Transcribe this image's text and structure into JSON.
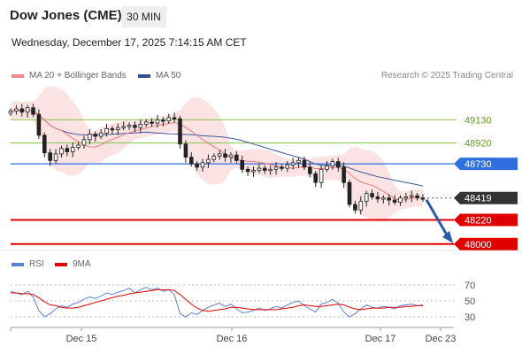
{
  "header": {
    "title": "Dow Jones (CME)",
    "interval": "30 MIN",
    "datetime": "Wednesday, December 17, 2025 7:14:15 AM CET"
  },
  "legend": {
    "ma20_label": "MA 20 + Bollinger Bands",
    "ma50_label": "MA 50",
    "copyright": "Research © 2025 Trading Central"
  },
  "rsi_legend": {
    "rsi_label": "RSI",
    "ma9_label": "9MA"
  },
  "colors": {
    "bollinger_fill": "#fbdada",
    "ma20": "#f07a7a",
    "ma50": "#3a5a9a",
    "resistance_green": "#8bc34a",
    "pivot_blue": "#2f6fe0",
    "support_red": "#e00000",
    "candle_up": "#ffffff",
    "candle_down": "#222222",
    "current_tag": "#333333",
    "arrow": "#2b5aa8",
    "rsi_line": "#5a7fd6",
    "rsi_ma": "#e00000"
  },
  "chart_data": {
    "type": "candlestick",
    "instrument": "Dow Jones (CME)",
    "x_ticks": [
      "Dec 15",
      "Dec 16",
      "Dec 17",
      "Dec 23"
    ],
    "ylim": [
      47950,
      49270
    ],
    "levels": [
      {
        "value": 49130,
        "label": "49130",
        "kind": "resistance",
        "tag": false
      },
      {
        "value": 48920,
        "label": "48920",
        "kind": "resistance",
        "tag": false
      },
      {
        "value": 48730,
        "label": "48730",
        "kind": "pivot",
        "tag": true
      },
      {
        "value": 48220,
        "label": "48220",
        "kind": "support",
        "tag": true
      },
      {
        "value": 48000,
        "label": "48000",
        "kind": "support",
        "tag": true
      }
    ],
    "current_price": {
      "value": 48419,
      "label": "48419"
    },
    "close_series": [
      49210,
      49230,
      49200,
      49240,
      49180,
      48990,
      48830,
      48760,
      48820,
      48870,
      48840,
      48880,
      48900,
      48950,
      49000,
      48980,
      49010,
      49050,
      49040,
      49060,
      49070,
      49080,
      49060,
      49090,
      49110,
      49100,
      49130,
      49120,
      49150,
      49140,
      48910,
      48790,
      48730,
      48700,
      48740,
      48770,
      48800,
      48820,
      48790,
      48810,
      48760,
      48680,
      48660,
      48670,
      48690,
      48670,
      48680,
      48700,
      48690,
      48720,
      48740,
      48760,
      48700,
      48640,
      48560,
      48680,
      48710,
      48750,
      48700,
      48560,
      48360,
      48310,
      48390,
      48460,
      48430,
      48410,
      48420,
      48400,
      48380,
      48420,
      48430,
      48440,
      48420,
      48419
    ],
    "rsi": {
      "levels": [
        70,
        50,
        30
      ],
      "ylim": [
        20,
        80
      ],
      "values": [
        62,
        60,
        58,
        62,
        55,
        38,
        30,
        34,
        40,
        44,
        42,
        46,
        48,
        52,
        55,
        53,
        56,
        60,
        58,
        61,
        63,
        66,
        60,
        64,
        67,
        64,
        66,
        62,
        64,
        58,
        34,
        30,
        35,
        33,
        38,
        42,
        45,
        47,
        43,
        46,
        40,
        35,
        36,
        38,
        41,
        38,
        40,
        43,
        41,
        45,
        48,
        50,
        44,
        40,
        36,
        46,
        48,
        52,
        47,
        36,
        30,
        34,
        40,
        45,
        42,
        41,
        43,
        42,
        40,
        44,
        45,
        46,
        44,
        45
      ],
      "ma9": [
        60,
        60,
        59,
        59,
        58,
        54,
        49,
        45,
        44,
        42,
        41,
        41,
        42,
        44,
        46,
        48,
        50,
        52,
        54,
        56,
        57,
        59,
        60,
        61,
        62,
        63,
        64,
        64,
        64,
        63,
        58,
        52,
        46,
        41,
        38,
        37,
        38,
        39,
        40,
        42,
        42,
        41,
        40,
        39,
        39,
        39,
        39,
        39,
        40,
        41,
        42,
        44,
        45,
        44,
        43,
        43,
        44,
        45,
        46,
        45,
        42,
        40,
        39,
        40,
        41,
        41,
        41,
        42,
        42,
        42,
        43,
        43,
        44,
        44
      ]
    }
  }
}
